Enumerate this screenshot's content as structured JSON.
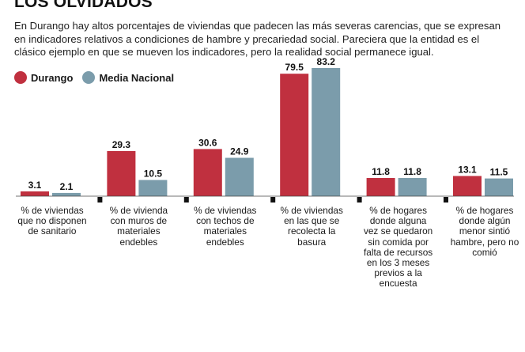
{
  "title": "LOS OLVIDADOS",
  "intro": "En Durango hay altos porcentajes de viviendas que padecen las más severas carencias, que se expresan en indicadores relativos a condiciones de hambre y precariedad social. Pareciera que la entidad es el clásico ejemplo en que se mueven los indicadores, pero la realidad social permanece igual.",
  "colors": {
    "durango": "#c0303f",
    "nacional": "#7b9cab",
    "tick": "#111111"
  },
  "chart_data": {
    "type": "bar",
    "title": "LOS OLVIDADOS",
    "xlabel": "",
    "ylabel": "",
    "ylim": [
      0,
      83.2
    ],
    "grid": false,
    "legend": "top-left",
    "categories": [
      "% de viviendas que no disponen de sanitario",
      "% de vivienda con muros de materiales endebles",
      "% de viviendas con techos de materiales endebles",
      "% de viviendas en las que se recolecta la basura",
      "% de hogares donde alguna vez se quedaron sin comida por falta de recursos en los 3 meses previos a la encuesta",
      "% de hogares donde algún menor sintió hambre, pero no comió"
    ],
    "series": [
      {
        "name": "Durango",
        "values": [
          3.1,
          29.3,
          30.6,
          79.5,
          11.8,
          13.1
        ],
        "labels": [
          "3.1",
          "29.3",
          "30.6",
          "79.5",
          "11.8",
          "13.1"
        ]
      },
      {
        "name": "Media Nacional",
        "values": [
          2.1,
          10.5,
          24.9,
          83.2,
          11.8,
          11.5
        ],
        "labels": [
          "2.1",
          "10.5",
          "24.9",
          "83.2",
          "11.8",
          "11.5"
        ]
      }
    ]
  }
}
